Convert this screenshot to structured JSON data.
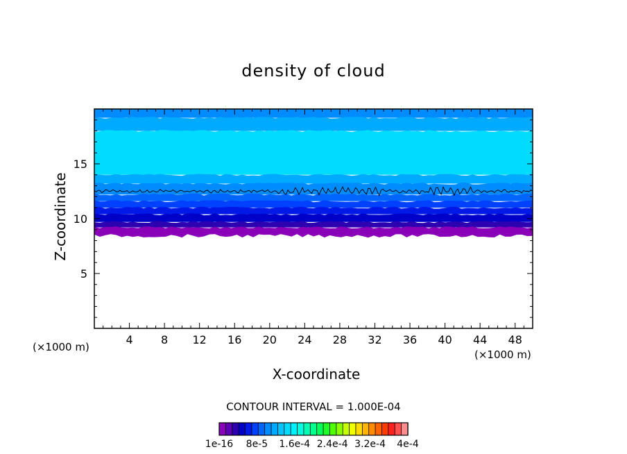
{
  "chart_data": {
    "type": "heatmap",
    "title": "density of cloud",
    "xlabel": "X-coordinate",
    "ylabel": "Z-coordinate",
    "x_unit_left": "(×1000 m)",
    "x_unit_right": "(×1000 m)",
    "xlim": [
      0,
      50
    ],
    "ylim": [
      0,
      20
    ],
    "xticks": [
      4,
      8,
      12,
      16,
      20,
      24,
      28,
      32,
      36,
      40,
      44,
      48
    ],
    "yticks": [
      5,
      10,
      15
    ],
    "contour_interval_text": "CONTOUR INTERVAL = 1.000E-04",
    "colorbar": {
      "labels": [
        "1e-16",
        "8e-5",
        "1.6e-4",
        "2.4e-4",
        "3.2e-4",
        "4e-4"
      ],
      "label_values": [
        0,
        8e-05,
        0.00016,
        0.00024,
        0.00032,
        0.0004
      ],
      "range": [
        0,
        0.0004
      ],
      "colors": [
        "#8a00b8",
        "#5c00b4",
        "#2d00b0",
        "#0000c8",
        "#0019e6",
        "#0040ff",
        "#0066ff",
        "#008cff",
        "#00aaff",
        "#00c4ff",
        "#00dcff",
        "#00f0ff",
        "#00ffe0",
        "#00ffb4",
        "#00ff8c",
        "#00ff5a",
        "#1eff28",
        "#50ff00",
        "#8cff00",
        "#c8ff00",
        "#f0ff00",
        "#ffdc00",
        "#ffb400",
        "#ff8c00",
        "#ff6400",
        "#ff3c00",
        "#ff2020",
        "#ff5050",
        "#ff8c8c"
      ]
    },
    "bands": [
      {
        "z": [
          8.5,
          9.2
        ],
        "color": "#8a00b8"
      },
      {
        "z": [
          9.2,
          9.7
        ],
        "color": "#2d00b0"
      },
      {
        "z": [
          9.7,
          10.4
        ],
        "color": "#0000c8"
      },
      {
        "z": [
          10.4,
          11.0
        ],
        "color": "#0019e6"
      },
      {
        "z": [
          11.0,
          11.6
        ],
        "color": "#0040ff"
      },
      {
        "z": [
          11.6,
          12.2
        ],
        "color": "#0066ff"
      },
      {
        "z": [
          12.2,
          13.2
        ],
        "color": "#008cff"
      },
      {
        "z": [
          13.2,
          14.0
        ],
        "color": "#00aaff"
      },
      {
        "z": [
          14.0,
          18.0
        ],
        "color": "#00dcff"
      },
      {
        "z": [
          18.0,
          19.2
        ],
        "color": "#00aaff"
      },
      {
        "z": [
          19.2,
          20.0
        ],
        "color": "#008cff"
      }
    ],
    "contour_line_z": 12.5
  }
}
